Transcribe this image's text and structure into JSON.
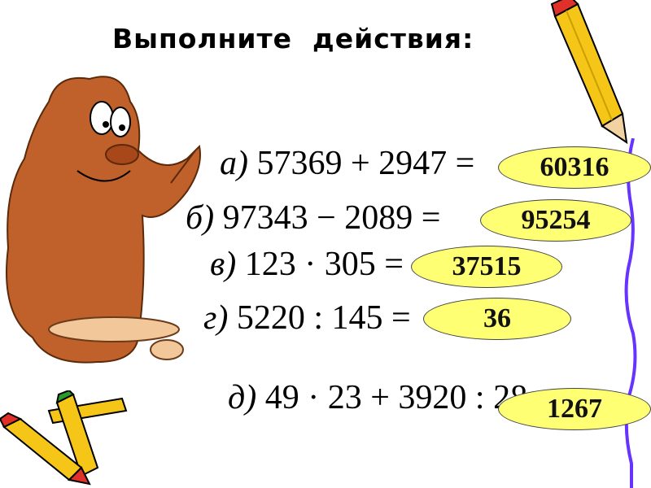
{
  "title": "Выполните  действия:",
  "exercises": [
    {
      "label": "а)",
      "expression": "57369 + 2947 =",
      "answer": "60316"
    },
    {
      "label": "б)",
      "expression": "97343 − 2089 =",
      "answer": "95254"
    },
    {
      "label": "в)",
      "expression": "123 · 305 =",
      "answer": "37515"
    },
    {
      "label": "г)",
      "expression": "5220 : 145 =",
      "answer": "36"
    },
    {
      "label": "д)",
      "expression": "49 · 23 + 3920 : 28 =",
      "answer": "1267"
    }
  ],
  "colors": {
    "answer_bg": "#ffff73",
    "line": "#6633ff",
    "creature": "#c0602a",
    "pencil": "#f5c518"
  },
  "illustrations": [
    "cartoon-creature",
    "pencil",
    "crayons"
  ]
}
